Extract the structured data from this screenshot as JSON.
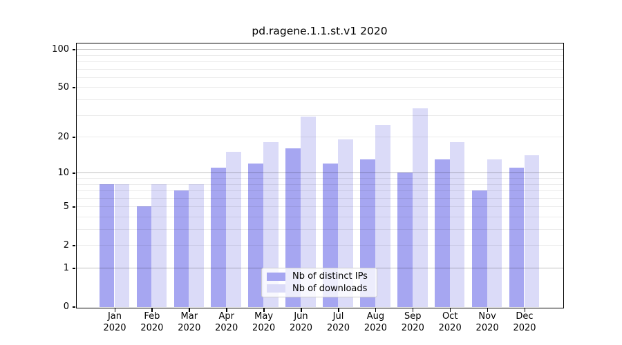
{
  "chart_data": {
    "type": "bar",
    "title": "pd.ragene.1.1.st.v1 2020",
    "categories": [
      "Jan",
      "Feb",
      "Mar",
      "Apr",
      "May",
      "Jun",
      "Jul",
      "Aug",
      "Sep",
      "Oct",
      "Nov",
      "Dec"
    ],
    "category_year": "2020",
    "series": [
      {
        "name": "Nb of distinct IPs",
        "color": "#a6a6f1",
        "values": [
          8,
          5,
          7,
          11,
          12,
          16,
          12,
          13,
          10,
          13,
          7,
          11
        ]
      },
      {
        "name": "Nb of downloads",
        "color": "#dbdbf8",
        "values": [
          8,
          8,
          8,
          15,
          18,
          29,
          19,
          25,
          34,
          18,
          13,
          14
        ]
      }
    ],
    "yscale": "log1p",
    "ylim": [
      0,
      110
    ],
    "yticks": [
      0,
      1,
      2,
      5,
      10,
      20,
      50,
      100
    ],
    "major_gridlines": [
      1,
      10,
      100
    ],
    "minor_gridlines": [
      2,
      3,
      4,
      5,
      6,
      7,
      8,
      9,
      20,
      30,
      40,
      50,
      60,
      70,
      80,
      90
    ],
    "grid": true,
    "legend_position": "lower center",
    "xlabel": "",
    "ylabel": ""
  }
}
